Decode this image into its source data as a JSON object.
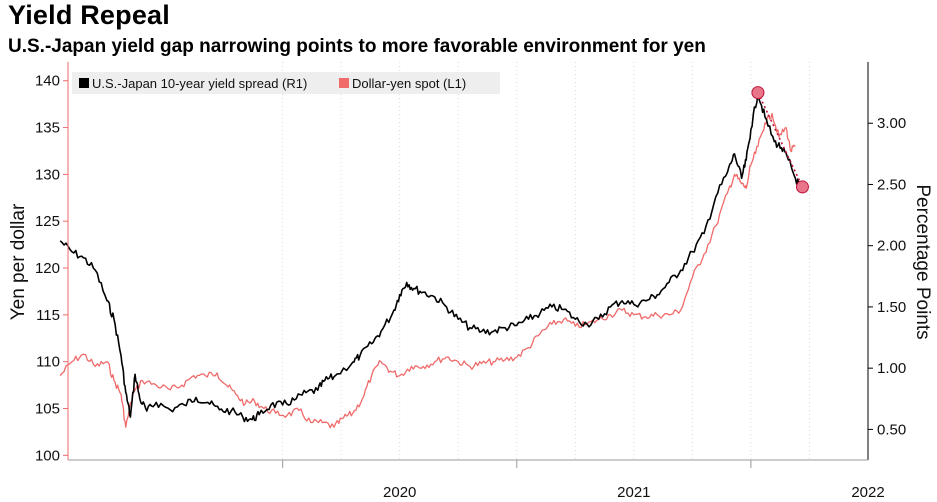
{
  "title": "Yield Repeal",
  "subtitle": "U.S.-Japan yield gap narrowing points to more favorable environment for yen",
  "colors": {
    "spread": "#000000",
    "yen": "#f06a6a",
    "marker": "#e8758a",
    "grid": "#d9d9d9"
  },
  "chart_data": {
    "type": "line",
    "title": "Yield Repeal",
    "subtitle": "U.S.-Japan yield gap narrowing points to more favorable environment for yen",
    "x_tick_labels": [
      "2020",
      "2021",
      "2022"
    ],
    "x_range": [
      "2019-02",
      "2022-07"
    ],
    "left_axis": {
      "label": "Yen per dollar",
      "range": [
        99.5,
        142
      ],
      "ticks": [
        100,
        105,
        110,
        115,
        120,
        125,
        130,
        135,
        140
      ]
    },
    "right_axis": {
      "label": "Percentage Points",
      "range": [
        0.25,
        3.5
      ],
      "ticks": [
        "0.50",
        "1.00",
        "1.50",
        "2.00",
        "2.50",
        "3.00"
      ]
    },
    "legend": [
      "U.S.-Japan 10-year yield spread (R1)",
      "Dollar-yen spot (L1)"
    ],
    "series": [
      {
        "name": "U.S.-Japan 10-year yield spread (R1)",
        "axis": "right",
        "points": [
          [
            2019.05,
            2.04
          ],
          [
            2019.1,
            1.95
          ],
          [
            2019.15,
            1.9
          ],
          [
            2019.2,
            1.8
          ],
          [
            2019.25,
            1.55
          ],
          [
            2019.28,
            1.4
          ],
          [
            2019.31,
            1.1
          ],
          [
            2019.33,
            0.8
          ],
          [
            2019.35,
            0.6
          ],
          [
            2019.37,
            0.95
          ],
          [
            2019.39,
            0.75
          ],
          [
            2019.42,
            0.65
          ],
          [
            2019.46,
            0.72
          ],
          [
            2019.52,
            0.66
          ],
          [
            2019.58,
            0.7
          ],
          [
            2019.63,
            0.76
          ],
          [
            2019.68,
            0.72
          ],
          [
            2019.73,
            0.66
          ],
          [
            2019.78,
            0.65
          ],
          [
            2019.83,
            0.6
          ],
          [
            2019.87,
            0.58
          ],
          [
            2019.9,
            0.62
          ],
          [
            2019.95,
            0.7
          ],
          [
            2020.0,
            0.7
          ],
          [
            2020.05,
            0.74
          ],
          [
            2020.1,
            0.8
          ],
          [
            2020.15,
            0.82
          ],
          [
            2020.18,
            0.9
          ],
          [
            2020.22,
            0.93
          ],
          [
            2020.3,
            1.05
          ],
          [
            2020.33,
            1.1
          ],
          [
            2020.38,
            1.2
          ],
          [
            2020.42,
            1.3
          ],
          [
            2020.47,
            1.45
          ],
          [
            2020.5,
            1.6
          ],
          [
            2020.53,
            1.7
          ],
          [
            2020.56,
            1.65
          ],
          [
            2020.6,
            1.62
          ],
          [
            2020.65,
            1.58
          ],
          [
            2020.7,
            1.5
          ],
          [
            2020.75,
            1.4
          ],
          [
            2020.8,
            1.33
          ],
          [
            2020.85,
            1.3
          ],
          [
            2020.9,
            1.3
          ],
          [
            2020.95,
            1.33
          ],
          [
            2021.0,
            1.35
          ],
          [
            2021.05,
            1.4
          ],
          [
            2021.1,
            1.45
          ],
          [
            2021.15,
            1.5
          ],
          [
            2021.2,
            1.48
          ],
          [
            2021.25,
            1.4
          ],
          [
            2021.3,
            1.36
          ],
          [
            2021.35,
            1.4
          ],
          [
            2021.4,
            1.5
          ],
          [
            2021.45,
            1.55
          ],
          [
            2021.5,
            1.52
          ],
          [
            2021.55,
            1.55
          ],
          [
            2021.6,
            1.6
          ],
          [
            2021.65,
            1.7
          ],
          [
            2021.7,
            1.8
          ],
          [
            2021.75,
            1.95
          ],
          [
            2021.8,
            2.1
          ],
          [
            2021.85,
            2.4
          ],
          [
            2021.9,
            2.6
          ],
          [
            2021.93,
            2.75
          ],
          [
            2021.96,
            2.55
          ],
          [
            2021.98,
            2.7
          ],
          [
            2022.0,
            2.95
          ],
          [
            2022.03,
            3.25
          ],
          [
            2022.06,
            3.05
          ],
          [
            2022.1,
            2.85
          ],
          [
            2022.13,
            2.8
          ],
          [
            2022.16,
            2.7
          ],
          [
            2022.19,
            2.55
          ],
          [
            2022.22,
            2.45
          ]
        ]
      },
      {
        "name": "Dollar-yen spot (L1)",
        "axis": "left",
        "points": [
          [
            2019.05,
            108.5
          ],
          [
            2019.1,
            110.0
          ],
          [
            2019.15,
            110.8
          ],
          [
            2019.2,
            109.5
          ],
          [
            2019.25,
            110.0
          ],
          [
            2019.28,
            108.0
          ],
          [
            2019.31,
            106.5
          ],
          [
            2019.33,
            103.0
          ],
          [
            2019.36,
            106.5
          ],
          [
            2019.4,
            108.0
          ],
          [
            2019.46,
            107.5
          ],
          [
            2019.52,
            107.0
          ],
          [
            2019.57,
            107.5
          ],
          [
            2019.62,
            108.5
          ],
          [
            2019.67,
            108.5
          ],
          [
            2019.72,
            108.8
          ],
          [
            2019.76,
            107.5
          ],
          [
            2019.8,
            106.5
          ],
          [
            2019.84,
            105.5
          ],
          [
            2019.88,
            105.8
          ],
          [
            2019.92,
            105.0
          ],
          [
            2019.97,
            104.5
          ],
          [
            2020.02,
            104.3
          ],
          [
            2020.07,
            104.8
          ],
          [
            2020.12,
            103.5
          ],
          [
            2020.17,
            103.5
          ],
          [
            2020.22,
            103.0
          ],
          [
            2020.26,
            104.0
          ],
          [
            2020.3,
            104.5
          ],
          [
            2020.34,
            106.0
          ],
          [
            2020.38,
            108.5
          ],
          [
            2020.42,
            110.0
          ],
          [
            2020.46,
            109.0
          ],
          [
            2020.5,
            108.5
          ],
          [
            2020.55,
            109.5
          ],
          [
            2020.6,
            109.5
          ],
          [
            2020.65,
            110.0
          ],
          [
            2020.7,
            110.5
          ],
          [
            2020.75,
            110.0
          ],
          [
            2020.8,
            109.5
          ],
          [
            2020.85,
            109.8
          ],
          [
            2020.9,
            110.0
          ],
          [
            2020.95,
            110.2
          ],
          [
            2021.0,
            110.5
          ],
          [
            2021.05,
            111.5
          ],
          [
            2021.1,
            113.0
          ],
          [
            2021.15,
            114.0
          ],
          [
            2021.2,
            114.5
          ],
          [
            2021.25,
            113.8
          ],
          [
            2021.3,
            114.0
          ],
          [
            2021.35,
            114.5
          ],
          [
            2021.4,
            115.0
          ],
          [
            2021.45,
            115.5
          ],
          [
            2021.5,
            115.0
          ],
          [
            2021.55,
            114.8
          ],
          [
            2021.6,
            115.0
          ],
          [
            2021.65,
            115.0
          ],
          [
            2021.7,
            115.5
          ],
          [
            2021.75,
            119.0
          ],
          [
            2021.8,
            121.5
          ],
          [
            2021.85,
            124.5
          ],
          [
            2021.9,
            128.0
          ],
          [
            2021.93,
            130.0
          ],
          [
            2021.96,
            129.0
          ],
          [
            2021.98,
            128.5
          ],
          [
            2022.0,
            131.0
          ],
          [
            2022.03,
            133.0
          ],
          [
            2022.06,
            135.5
          ],
          [
            2022.09,
            136.5
          ],
          [
            2022.12,
            134.0
          ],
          [
            2022.15,
            135.0
          ],
          [
            2022.17,
            132.5
          ],
          [
            2022.19,
            133.0
          ]
        ]
      }
    ],
    "annotation": {
      "type": "dotted-trend",
      "from": [
        2022.03,
        3.25
      ],
      "to": [
        2022.22,
        2.48
      ]
    }
  }
}
